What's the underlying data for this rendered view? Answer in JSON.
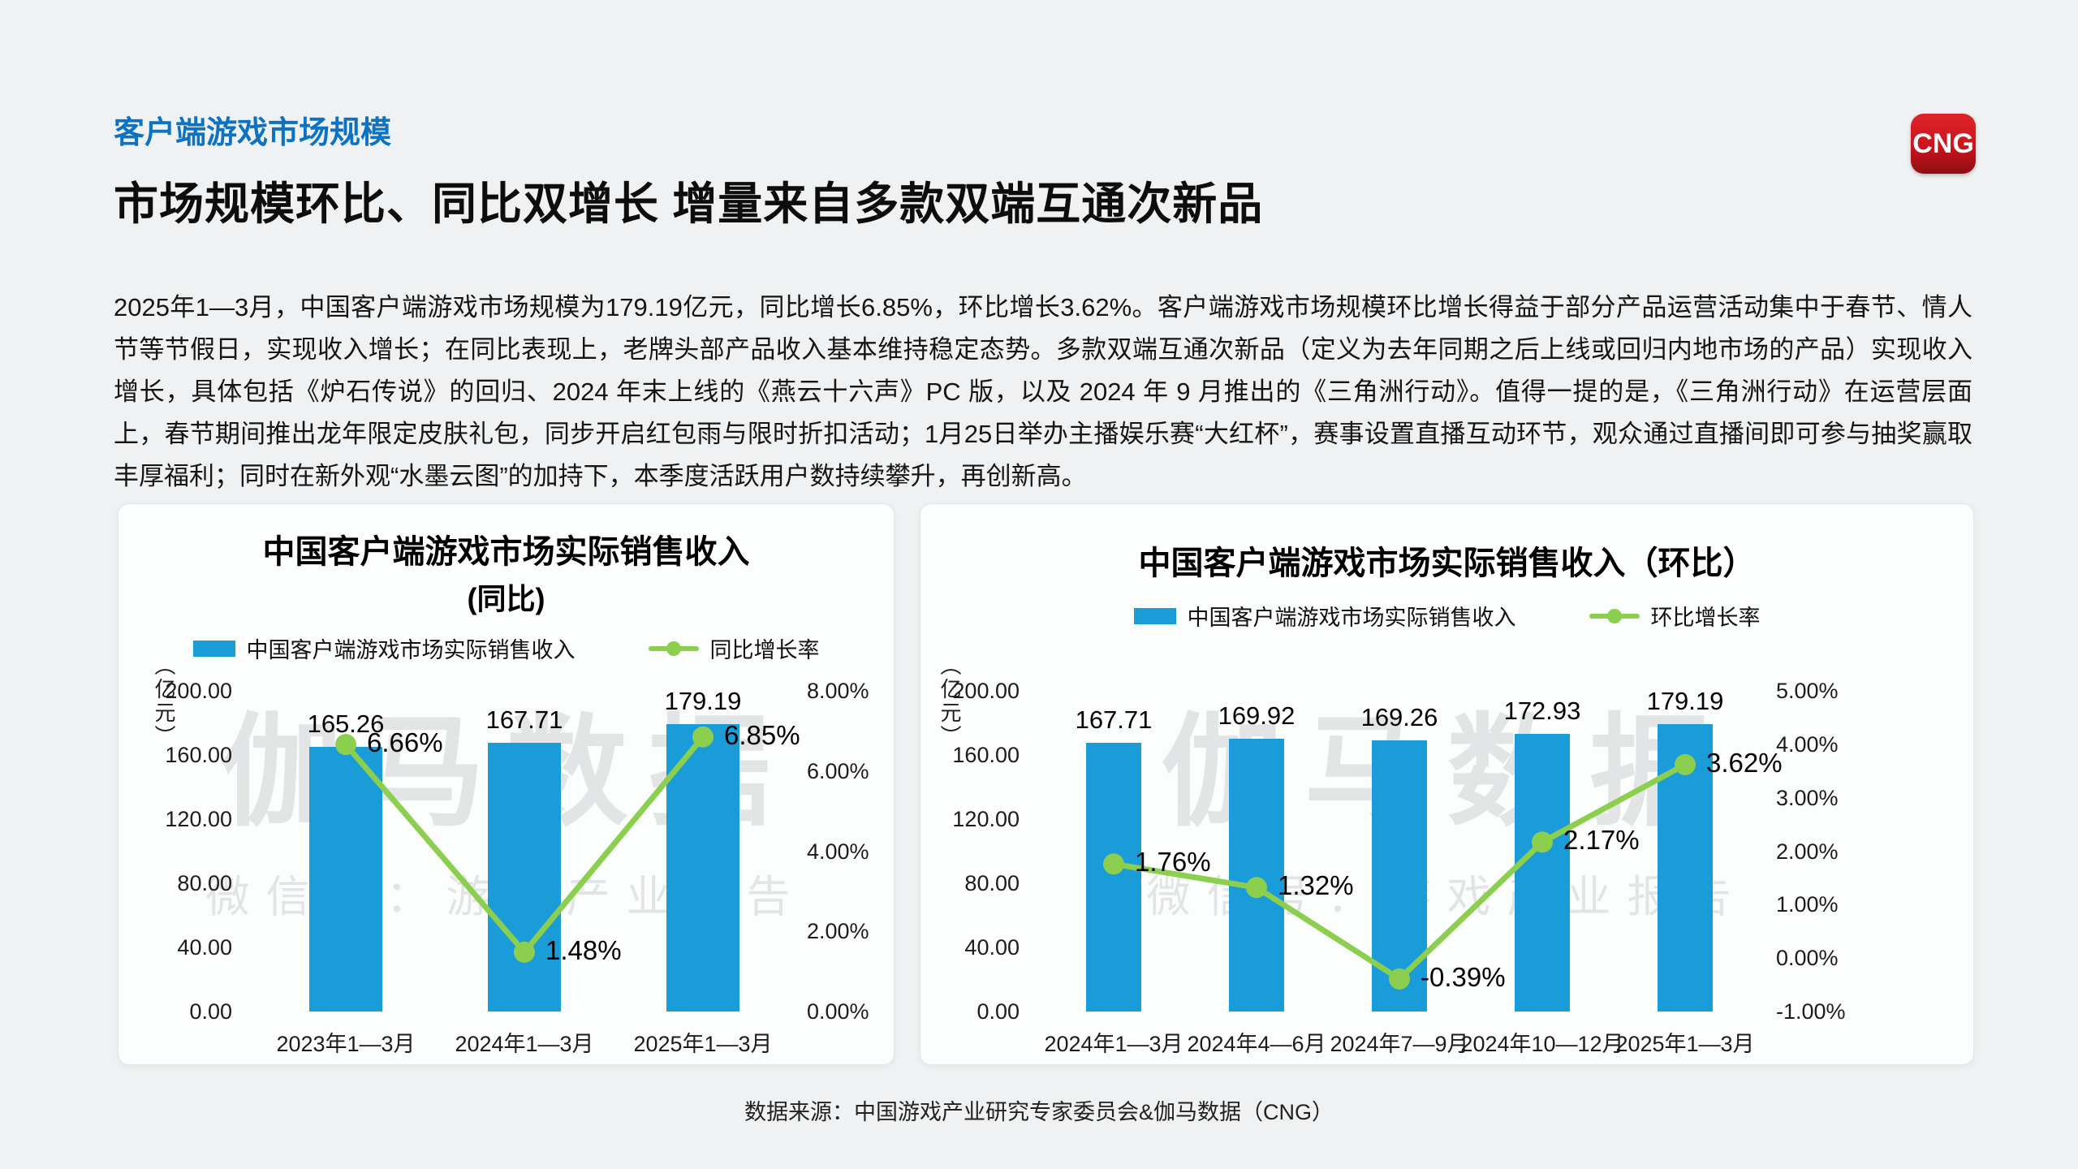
{
  "colors": {
    "accent_blue": "#0e72c2",
    "bar_blue": "#199cd8",
    "line_green": "#8cce4e",
    "logo_red": "#c9151b"
  },
  "header": {
    "eyebrow": "客户端游戏市场规模",
    "title": "市场规模环比、同比双增长 增量来自多款双端互通次新品"
  },
  "logo": {
    "text": "CNG"
  },
  "paragraph": "2025年1—3月，中国客户端游戏市场规模为179.19亿元，同比增长6.85%，环比增长3.62%。客户端游戏市场规模环比增长得益于部分产品运营活动集中于春节、情人节等节假日，实现收入增长；在同比表现上，老牌头部产品收入基本维持稳定态势。多款双端互通次新品（定义为去年同期之后上线或回归内地市场的产品）实现收入增长，具体包括《炉石传说》的回归、2024 年末上线的《燕云十六声》PC 版，以及 2024 年 9 月推出的《三角洲行动》。值得一提的是，《三角洲行动》在运营层面上，春节期间推出龙年限定皮肤礼包，同步开启红包雨与限时折扣活动；1月25日举办主播娱乐赛“大红杯”，赛事设置直播互动环节，观众通过直播间即可参与抽奖赢取丰厚福利；同时在新外观“水墨云图”的加持下，本季度活跃用户数持续攀升，再创新高。",
  "watermark": {
    "line1": "伽马数据",
    "line2": "微信号：游戏产业报告"
  },
  "footer": {
    "source": "数据来源：中国游戏产业研究专家委员会&伽马数据（CNG）"
  },
  "chart_data": [
    {
      "type": "bar",
      "title": "中国客户端游戏市场实际销售收入",
      "subtitle": "(同比)",
      "unit_label": "（亿元）",
      "categories": [
        "2023年1—3月",
        "2024年1—3月",
        "2025年1—3月"
      ],
      "series": [
        {
          "name": "中国客户端游戏市场实际销售收入",
          "kind": "bar",
          "axis": "left",
          "values": [
            165.26,
            167.71,
            179.19
          ],
          "labels": [
            "165.26",
            "167.71",
            "179.19"
          ],
          "color": "#199cd8"
        },
        {
          "name": "同比增长率",
          "kind": "line",
          "axis": "right",
          "values": [
            6.66,
            1.48,
            6.85
          ],
          "labels": [
            "6.66%",
            "1.48%",
            "6.85%"
          ],
          "color": "#8cce4e"
        }
      ],
      "left_axis": {
        "min": 0,
        "max": 200,
        "ticks": [
          "200.00",
          "160.00",
          "120.00",
          "80.00",
          "40.00",
          "0.00"
        ]
      },
      "right_axis": {
        "min": 0,
        "max": 8,
        "ticks": [
          "8.00%",
          "6.00%",
          "4.00%",
          "2.00%",
          "0.00%"
        ]
      },
      "grid": false,
      "legend_position": "top"
    },
    {
      "type": "bar",
      "title": "中国客户端游戏市场实际销售收入（环比）",
      "subtitle": "",
      "unit_label": "（亿元）",
      "categories": [
        "2024年1—3月",
        "2024年4—6月",
        "2024年7—9月",
        "2024年10—12月",
        "2025年1—3月"
      ],
      "series": [
        {
          "name": "中国客户端游戏市场实际销售收入",
          "kind": "bar",
          "axis": "left",
          "values": [
            167.71,
            169.92,
            169.26,
            172.93,
            179.19
          ],
          "labels": [
            "167.71",
            "169.92",
            "169.26",
            "172.93",
            "179.19"
          ],
          "color": "#199cd8"
        },
        {
          "name": "环比增长率",
          "kind": "line",
          "axis": "right",
          "values": [
            1.76,
            1.32,
            -0.39,
            2.17,
            3.62
          ],
          "labels": [
            "1.76%",
            "1.32%",
            "-0.39%",
            "2.17%",
            "3.62%"
          ],
          "color": "#8cce4e"
        }
      ],
      "left_axis": {
        "min": 0,
        "max": 200,
        "ticks": [
          "200.00",
          "160.00",
          "120.00",
          "80.00",
          "40.00",
          "0.00"
        ]
      },
      "right_axis": {
        "min": -1,
        "max": 5,
        "ticks": [
          "5.00%",
          "4.00%",
          "3.00%",
          "2.00%",
          "1.00%",
          "0.00%",
          "-1.00%"
        ]
      },
      "grid": false,
      "legend_position": "top"
    }
  ]
}
